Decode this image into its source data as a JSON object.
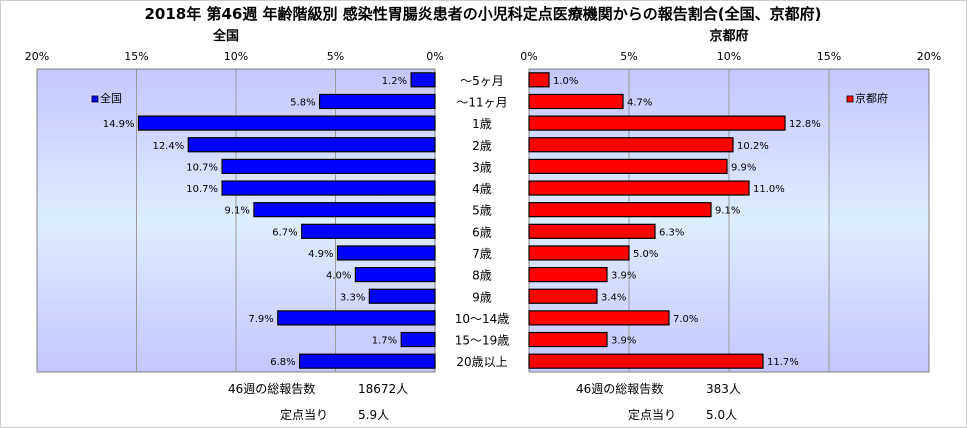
{
  "chart_data": {
    "type": "bar",
    "title": "2018年 第46週 年齢階級別 感染性胃腸炎患者の小児科定点医療機関からの報告割合(全国、京都府)",
    "categories": [
      "～5ヶ月",
      "～11ヶ月",
      "1歳",
      "2歳",
      "3歳",
      "4歳",
      "5歳",
      "6歳",
      "7歳",
      "8歳",
      "9歳",
      "10～14歳",
      "15～19歳",
      "20歳以上"
    ],
    "xlim": [
      0,
      20
    ],
    "ticks": [
      0,
      5,
      10,
      15,
      20
    ],
    "tick_suffix": "%",
    "grid": true,
    "series": [
      {
        "name": "全国",
        "panel_title": "全国",
        "direction": "left",
        "color": "#0000ff",
        "values": [
          1.2,
          5.8,
          14.9,
          12.4,
          10.7,
          10.7,
          9.1,
          6.7,
          4.9,
          4.0,
          3.3,
          7.9,
          1.7,
          6.8
        ]
      },
      {
        "name": "京都府",
        "panel_title": "京都府",
        "direction": "right",
        "color": "#ff0000",
        "values": [
          1.0,
          4.7,
          12.8,
          10.2,
          9.9,
          11.0,
          9.1,
          6.3,
          5.0,
          3.9,
          3.4,
          7.0,
          3.9,
          11.7
        ]
      }
    ]
  },
  "footer": {
    "national": {
      "total_label": "46週の総報告数",
      "total_value": "18672人",
      "per_site_label": "定点当り",
      "per_site_value": "5.9人"
    },
    "kyoto": {
      "total_label": "46週の総報告数",
      "total_value": "383人",
      "per_site_label": "定点当り",
      "per_site_value": "5.0人"
    }
  }
}
